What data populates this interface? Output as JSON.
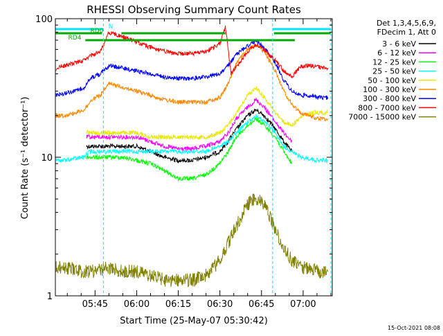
{
  "chart_data": {
    "type": "line",
    "title": "RHESSI Observing Summary Count Rates",
    "xlabel": "Start Time (25-May-07 05:30:42)",
    "ylabel": "Count Rate (s⁻¹ detector⁻¹)",
    "yscale": "log",
    "xlim": [
      "05:30:42",
      "07:10:30"
    ],
    "ylim": [
      1,
      100
    ],
    "x_ticks": [
      "05:45",
      "06:00",
      "06:15",
      "06:30",
      "06:45",
      "07:00"
    ],
    "y_ticks": [
      "1",
      "10",
      "100"
    ],
    "legend_header": [
      "Det 1,3,4,5,6,9,",
      "FDecim 1, Att 0"
    ],
    "legend_position": "right",
    "footer_date": "15-Oct-2021 08:08",
    "flags": [
      {
        "label": "N",
        "color": "#00e5ff",
        "spans": [
          [
            "05:30:42",
            "05:48:00"
          ],
          [
            "06:49:00",
            "07:10:00"
          ]
        ]
      },
      {
        "label": "RD0",
        "color": "#00aa00",
        "spans": [
          [
            "05:30:42",
            "05:47:30"
          ],
          [
            "05:54:30",
            "06:32:00"
          ],
          [
            "06:49:30",
            "07:10:00"
          ]
        ]
      },
      {
        "label": "RD4",
        "color": "#00aa00",
        "spans": [
          [
            "05:41:30",
            "06:57:00"
          ]
        ]
      }
    ],
    "series": [
      {
        "name": "3 - 6 keV",
        "color": "#000000",
        "x": [
          "05:42",
          "05:44",
          "05:46",
          "05:50",
          "05:55",
          "06:00",
          "06:05",
          "06:10",
          "06:15",
          "06:20",
          "06:25",
          "06:30",
          "06:33",
          "06:36",
          "06:40",
          "06:43",
          "06:46",
          "06:50",
          "06:53",
          "06:56"
        ],
        "values": [
          12,
          12,
          12,
          12,
          12,
          12,
          11,
          10,
          9.5,
          9.5,
          10,
          11,
          13,
          16,
          20,
          22,
          20,
          16,
          13,
          11
        ]
      },
      {
        "name": "6 - 12 keV",
        "color": "#ff00ff",
        "x": [
          "05:42",
          "05:44",
          "05:46",
          "05:50",
          "05:55",
          "06:00",
          "06:05",
          "06:10",
          "06:15",
          "06:20",
          "06:25",
          "06:30",
          "06:33",
          "06:36",
          "06:40",
          "06:43",
          "06:46",
          "06:50",
          "06:53",
          "06:56"
        ],
        "values": [
          14,
          14,
          14,
          14,
          14,
          14,
          13,
          12,
          11.5,
          11.5,
          12,
          13,
          15,
          19,
          23,
          26,
          23,
          18,
          15,
          13
        ]
      },
      {
        "name": "12 - 25 keV",
        "color": "#00ff00",
        "x": [
          "05:42",
          "05:44",
          "05:46",
          "05:50",
          "05:55",
          "06:00",
          "06:05",
          "06:10",
          "06:15",
          "06:20",
          "06:25",
          "06:30",
          "06:33",
          "06:36",
          "06:40",
          "06:43",
          "06:46",
          "06:50",
          "06:53",
          "06:56"
        ],
        "values": [
          10,
          10,
          10,
          10,
          10,
          9.5,
          9,
          8,
          7,
          7,
          7.5,
          9,
          11,
          14,
          17,
          19,
          17,
          14,
          11,
          9
        ]
      },
      {
        "name": "25 - 50 keV",
        "color": "#00ffff",
        "x": [
          "05:31",
          "05:34",
          "05:38",
          "05:41",
          "05:43",
          "05:46",
          "05:50",
          "05:55",
          "06:00",
          "06:05",
          "06:10",
          "06:15",
          "06:20",
          "06:25",
          "06:30",
          "06:33",
          "06:36",
          "06:40",
          "06:43",
          "06:46",
          "06:50",
          "06:53",
          "06:56",
          "06:59",
          "07:02",
          "07:05",
          "07:09"
        ],
        "values": [
          9.5,
          9.5,
          9.8,
          10,
          11,
          11,
          11,
          11,
          11,
          11,
          11,
          11,
          11,
          11,
          12,
          13,
          15,
          18,
          20,
          18,
          15,
          12,
          11,
          10,
          9.8,
          9.5,
          9.5
        ]
      },
      {
        "name": "50 - 100 keV",
        "color": "#e8e800",
        "x": [
          "05:42",
          "05:44",
          "05:46",
          "05:50",
          "05:55",
          "06:00",
          "06:05",
          "06:10",
          "06:15",
          "06:20",
          "06:25",
          "06:30",
          "06:33",
          "06:36",
          "06:40",
          "06:43",
          "06:46",
          "06:50",
          "06:53",
          "06:56",
          "07:00",
          "07:04",
          "07:09"
        ],
        "values": [
          15,
          15,
          15,
          15,
          15,
          15,
          14,
          14,
          14,
          14,
          14,
          15,
          17,
          21,
          28,
          32,
          27,
          21,
          18,
          17,
          20,
          21,
          21
        ]
      },
      {
        "name": "100 - 300 keV",
        "color": "#ff8800",
        "x": [
          "05:31",
          "05:34",
          "05:38",
          "05:41",
          "05:44",
          "05:47",
          "05:50",
          "05:55",
          "06:00",
          "06:05",
          "06:10",
          "06:15",
          "06:20",
          "06:25",
          "06:30",
          "06:33",
          "06:36",
          "06:40",
          "06:43",
          "06:46",
          "06:50",
          "06:53",
          "06:56",
          "06:59",
          "07:02",
          "07:05",
          "07:09"
        ],
        "values": [
          20,
          20,
          21,
          22,
          26,
          28,
          34,
          32,
          30,
          28,
          26,
          25,
          25,
          25,
          27,
          34,
          48,
          60,
          65,
          58,
          42,
          30,
          24,
          21,
          20,
          19,
          19
        ]
      },
      {
        "name": "300 - 800 keV",
        "color": "#0000ff",
        "x": [
          "05:31",
          "05:34",
          "05:38",
          "05:41",
          "05:44",
          "05:47",
          "05:50",
          "05:55",
          "06:00",
          "06:05",
          "06:10",
          "06:15",
          "06:20",
          "06:25",
          "06:30",
          "06:33",
          "06:36",
          "06:40",
          "06:43",
          "06:46",
          "06:50",
          "06:53",
          "06:56",
          "06:59",
          "07:02",
          "07:05",
          "07:09"
        ],
        "values": [
          28,
          29,
          30,
          32,
          38,
          40,
          46,
          44,
          42,
          40,
          38,
          37,
          37,
          38,
          40,
          46,
          55,
          64,
          68,
          62,
          48,
          36,
          30,
          28,
          28,
          27,
          27
        ]
      },
      {
        "name": "800 - 7000 keV",
        "color": "#ff0000",
        "x": [
          "05:31",
          "05:34",
          "05:38",
          "05:41",
          "05:44",
          "05:47",
          "05:50",
          "05:55",
          "06:00",
          "06:05",
          "06:10",
          "06:15",
          "06:20",
          "06:25",
          "06:30",
          "06:32",
          "06:34",
          "06:37",
          "06:40",
          "06:43",
          "06:46",
          "06:50",
          "06:53",
          "06:56",
          "06:59",
          "07:02",
          "07:05",
          "07:09"
        ],
        "values": [
          44,
          46,
          48,
          50,
          55,
          58,
          80,
          74,
          68,
          62,
          58,
          56,
          56,
          58,
          66,
          88,
          40,
          48,
          58,
          65,
          60,
          50,
          42,
          38,
          45,
          46,
          45,
          44
        ]
      },
      {
        "name": "7000 - 15000 keV",
        "color": "#808000",
        "x": [
          "05:31",
          "05:35",
          "05:40",
          "05:45",
          "05:50",
          "05:55",
          "06:00",
          "06:05",
          "06:10",
          "06:15",
          "06:20",
          "06:25",
          "06:30",
          "06:33",
          "06:36",
          "06:39",
          "06:41",
          "06:43",
          "06:45",
          "06:47",
          "06:50",
          "06:53",
          "06:56",
          "06:59",
          "07:02",
          "07:05",
          "07:09"
        ],
        "values": [
          1.6,
          1.6,
          1.5,
          1.5,
          1.6,
          1.5,
          1.5,
          1.4,
          1.3,
          1.3,
          1.3,
          1.4,
          1.8,
          2.4,
          3.2,
          4.2,
          4.8,
          5.0,
          4.8,
          4.2,
          3.0,
          2.2,
          1.8,
          1.6,
          1.6,
          1.5,
          1.5
        ]
      }
    ]
  }
}
